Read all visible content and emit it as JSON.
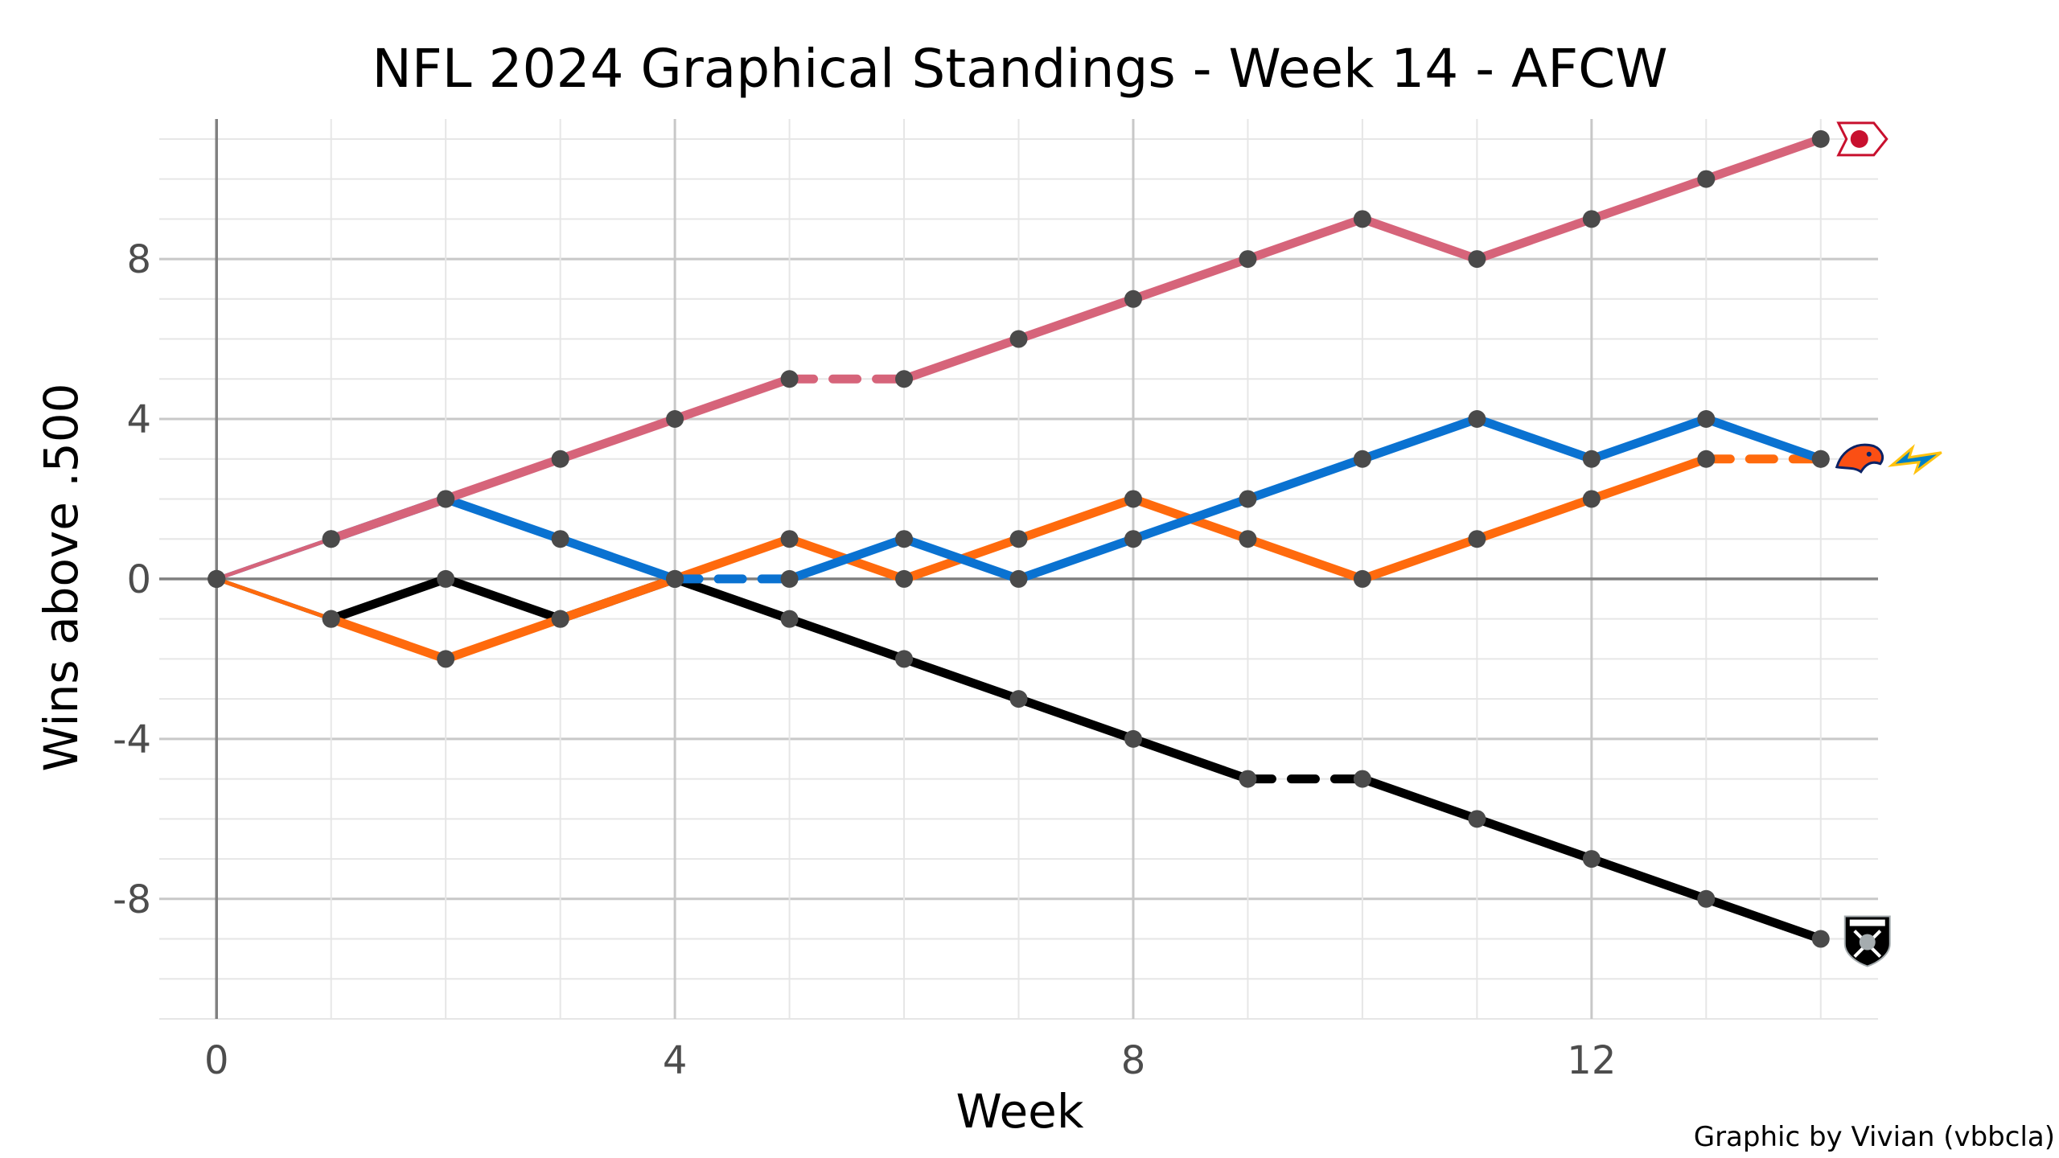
{
  "chart_data": {
    "type": "line",
    "title": "NFL 2024 Graphical Standings - Week 14 - AFCW",
    "xlabel": "Week",
    "ylabel": "Wins above .500",
    "caption": "Graphic by Vivian (vbbcla)",
    "xlim": [
      -0.5,
      14.5
    ],
    "ylim": [
      -11,
      11.5
    ],
    "x_ticks": [
      0,
      4,
      8,
      12
    ],
    "x_tick_labels": [
      "0",
      "4",
      "8",
      "12"
    ],
    "y_ticks": [
      -8,
      -4,
      0,
      4,
      8
    ],
    "y_tick_labels": [
      "-8",
      "-4",
      "0",
      "4",
      "8"
    ],
    "grid": true,
    "legend": "team logos at line ends (right)",
    "point_color": "#4a4a4a",
    "series": [
      {
        "team": "KC",
        "color": "#D6647A",
        "logo": "chiefs-logo",
        "points": [
          [
            0,
            0
          ],
          [
            1,
            1
          ],
          [
            2,
            2
          ],
          [
            3,
            3
          ],
          [
            4,
            4
          ],
          [
            5,
            5
          ],
          [
            6,
            5
          ],
          [
            7,
            6
          ],
          [
            8,
            7
          ],
          [
            9,
            8
          ],
          [
            10,
            9
          ],
          [
            11,
            8
          ],
          [
            12,
            9
          ],
          [
            13,
            10
          ],
          [
            14,
            11
          ]
        ],
        "dashed_after_x": [
          5
        ]
      },
      {
        "team": "LAC",
        "color": "#0A72D1",
        "logo": "chargers-logo",
        "points": [
          [
            0,
            0
          ],
          [
            1,
            1
          ],
          [
            2,
            2
          ],
          [
            3,
            1
          ],
          [
            4,
            0
          ],
          [
            5,
            0
          ],
          [
            6,
            1
          ],
          [
            7,
            0
          ],
          [
            8,
            1
          ],
          [
            9,
            2
          ],
          [
            10,
            3
          ],
          [
            11,
            4
          ],
          [
            12,
            3
          ],
          [
            13,
            4
          ],
          [
            14,
            3
          ]
        ],
        "dashed_after_x": [
          4
        ]
      },
      {
        "team": "DEN",
        "color": "#FF6A0D",
        "logo": "broncos-logo",
        "points": [
          [
            0,
            0
          ],
          [
            1,
            -1
          ],
          [
            2,
            -2
          ],
          [
            3,
            -1
          ],
          [
            4,
            0
          ],
          [
            5,
            1
          ],
          [
            6,
            0
          ],
          [
            7,
            1
          ],
          [
            8,
            2
          ],
          [
            9,
            1
          ],
          [
            10,
            0
          ],
          [
            11,
            1
          ],
          [
            12,
            2
          ],
          [
            13,
            3
          ],
          [
            14,
            3
          ]
        ],
        "dashed_after_x": [
          13
        ]
      },
      {
        "team": "LV",
        "color": "#000000",
        "logo": "raiders-logo",
        "points": [
          [
            0,
            0
          ],
          [
            1,
            -1
          ],
          [
            2,
            0
          ],
          [
            3,
            -1
          ],
          [
            4,
            0
          ],
          [
            5,
            -1
          ],
          [
            6,
            -2
          ],
          [
            7,
            -3
          ],
          [
            8,
            -4
          ],
          [
            9,
            -5
          ],
          [
            10,
            -5
          ],
          [
            11,
            -6
          ],
          [
            12,
            -7
          ],
          [
            13,
            -8
          ],
          [
            14,
            -9
          ]
        ],
        "dashed_after_x": [
          9
        ]
      }
    ]
  }
}
